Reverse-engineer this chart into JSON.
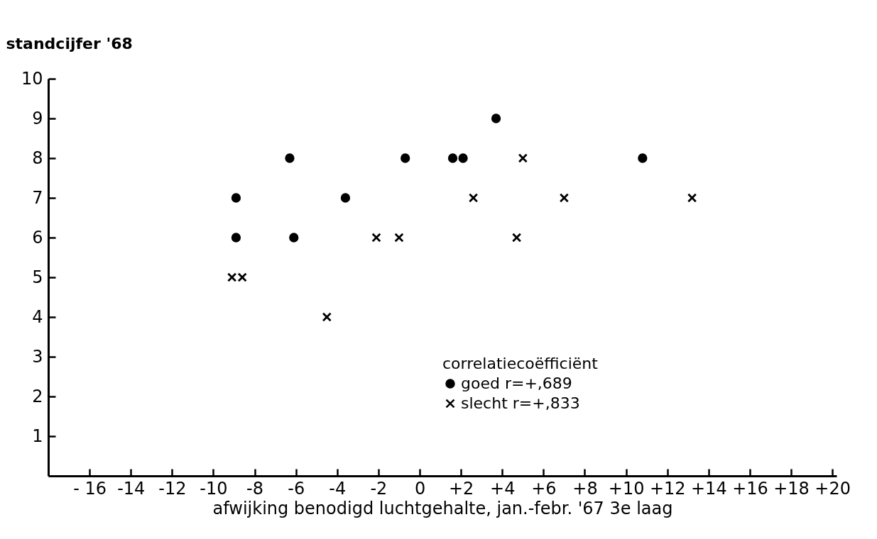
{
  "chart_data": {
    "type": "scatter",
    "xlabel": "afwijking benodigd luchtgehalte, jan.-febr. '67 3e laag",
    "ylabel": "standcijfer '68",
    "legend_title": "correlatiecoëfficiënt",
    "xlim": [
      -18,
      20.2
    ],
    "ylim": [
      0,
      10
    ],
    "xticks": [
      {
        "value": -16,
        "label": "- 16"
      },
      {
        "value": -14,
        "label": "-14"
      },
      {
        "value": -12,
        "label": "-12"
      },
      {
        "value": -10,
        "label": "-10"
      },
      {
        "value": -8,
        "label": "-8"
      },
      {
        "value": -6,
        "label": "-6"
      },
      {
        "value": -4,
        "label": "-4"
      },
      {
        "value": -2,
        "label": "-2"
      },
      0,
      {
        "value": 2,
        "label": "+2"
      },
      {
        "value": 4,
        "label": "+4"
      },
      {
        "value": 6,
        "label": "+6"
      },
      {
        "value": 8,
        "label": "+8"
      },
      {
        "value": 10,
        "label": "+10"
      },
      {
        "value": 12,
        "label": "+12"
      },
      {
        "value": 14,
        "label": "+14"
      },
      {
        "value": 16,
        "label": "+16"
      },
      {
        "value": 18,
        "label": "+18"
      },
      {
        "value": 20,
        "label": "+20"
      }
    ],
    "yticks": [
      1,
      2,
      3,
      4,
      5,
      6,
      7,
      8,
      9,
      10
    ],
    "grid": false,
    "legend": "bottom right",
    "series": [
      {
        "name": "goed r=+,689",
        "color": "#000000",
        "marker": "circle",
        "x": [
          -8.9,
          -8.9,
          -6.3,
          -6.1,
          -3.6,
          -0.7,
          1.6,
          2.1,
          3.7,
          10.8
        ],
        "values": [
          7,
          6,
          8,
          6,
          7,
          8,
          8,
          8,
          9,
          8
        ]
      },
      {
        "name": "slecht r=+,833",
        "color": "#000000",
        "marker": "cross",
        "x": [
          -9.1,
          -8.6,
          -4.5,
          -2.1,
          -1,
          2.6,
          4.7,
          5,
          7,
          13.2
        ],
        "values": [
          5,
          5,
          4,
          6,
          6,
          7,
          6,
          8,
          7,
          7
        ]
      }
    ]
  }
}
